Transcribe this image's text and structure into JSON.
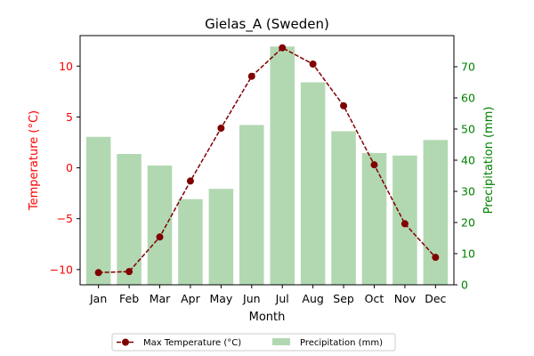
{
  "chart_data": {
    "type": "bar+line",
    "title": "Gielas_A (Sweden)",
    "xlabel": "Month",
    "ylabel_left": "Temperature (°C)",
    "ylabel_right": "Precipitation (mm)",
    "categories": [
      "Jan",
      "Feb",
      "Mar",
      "Apr",
      "May",
      "Jun",
      "Jul",
      "Aug",
      "Sep",
      "Oct",
      "Nov",
      "Dec"
    ],
    "ylim_left": [
      -11.5,
      13
    ],
    "ylim_right": [
      0,
      80
    ],
    "yticks_left": [
      -10,
      -5,
      0,
      5,
      10
    ],
    "yticks_right": [
      0,
      10,
      20,
      30,
      40,
      50,
      60,
      70
    ],
    "series": [
      {
        "name": "Max Temperature (°C)",
        "kind": "line",
        "axis": "left",
        "color": "#800000",
        "values": [
          -10.3,
          -10.2,
          -6.8,
          -1.3,
          3.9,
          9.0,
          11.8,
          10.2,
          6.1,
          0.3,
          -5.5,
          -8.8
        ]
      },
      {
        "name": "Precipitation (mm)",
        "kind": "bar",
        "axis": "right",
        "color": "#b2d8b2",
        "values": [
          47.5,
          42,
          38.3,
          27.5,
          30.8,
          51.3,
          76.5,
          65,
          49.3,
          42.3,
          41.5,
          46.5
        ]
      }
    ],
    "grid": false,
    "legend_position": "bottom-center"
  }
}
